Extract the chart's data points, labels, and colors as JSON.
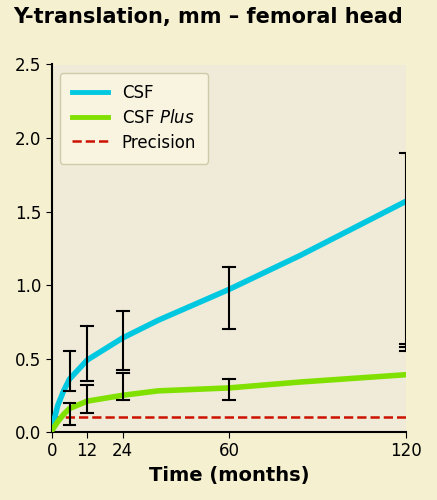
{
  "title": "Y-translation, mm – femoral head",
  "xlabel": "Time (months)",
  "fig_bg_color": "#f5f0d0",
  "plot_bg_color": "#f0ead8",
  "ylim": [
    0,
    2.5
  ],
  "xlim": [
    0,
    120
  ],
  "yticks": [
    0,
    0.5,
    1.0,
    1.5,
    2.0,
    2.5
  ],
  "xticks": [
    0,
    12,
    24,
    60,
    120
  ],
  "csf_x": [
    0,
    2,
    4,
    6,
    12,
    24,
    36,
    60,
    84,
    120
  ],
  "csf_y": [
    0.02,
    0.18,
    0.28,
    0.36,
    0.49,
    0.64,
    0.76,
    0.97,
    1.2,
    1.57
  ],
  "csf_color": "#00c8e0",
  "csf_lw": 4.0,
  "csf_plus_x": [
    0,
    2,
    4,
    6,
    12,
    24,
    36,
    60,
    84,
    120
  ],
  "csf_plus_y": [
    0.01,
    0.07,
    0.12,
    0.16,
    0.21,
    0.25,
    0.28,
    0.3,
    0.34,
    0.39
  ],
  "csf_plus_color": "#80e000",
  "csf_plus_lw": 4.0,
  "precision_y": 0.1,
  "precision_color": "#cc1100",
  "csf_ci_x": [
    6,
    12,
    24,
    60,
    120
  ],
  "csf_ci_lo": [
    0.28,
    0.35,
    0.42,
    0.7,
    0.58
  ],
  "csf_ci_hi": [
    0.55,
    0.72,
    0.82,
    1.12,
    1.9
  ],
  "csf_plus_ci_x": [
    6,
    12,
    24,
    60,
    120
  ],
  "csf_plus_ci_lo": [
    0.05,
    0.13,
    0.22,
    0.22,
    0.55
  ],
  "csf_plus_ci_hi": [
    0.2,
    0.32,
    0.4,
    0.36,
    0.6
  ],
  "legend_csf": "CSF",
  "legend_csf_plus": "CSF $\\it{Plus}$",
  "legend_precision": "Precision",
  "title_fontsize": 15,
  "axis_label_fontsize": 14,
  "tick_fontsize": 12,
  "legend_fontsize": 12,
  "cap_size_data": 2.0
}
